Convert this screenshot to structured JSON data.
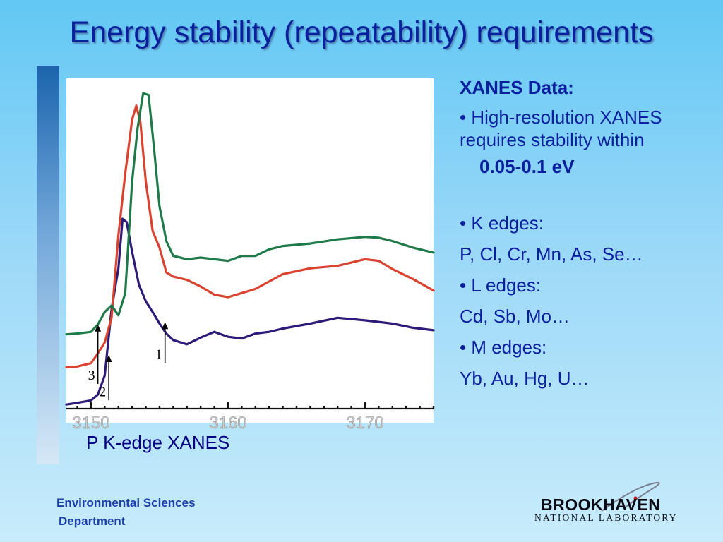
{
  "slide": {
    "title": "Energy stability (repeatability) requirements",
    "caption": "P K-edge XANES"
  },
  "info": {
    "heading": "XANES Data:",
    "bullet1": "• High-resolution XANES requires stability within",
    "bullet1_value": "0.05-0.1 eV",
    "bullet2": "• K edges:",
    "bullet2_items": "P, Cl, Cr, Mn, As, Se…",
    "bullet3": "• L edges:",
    "bullet3_items": "Cd, Sb, Mo…",
    "bullet4": "• M edges:",
    "bullet4_items": "Yb, Au, Hg, U…"
  },
  "footer": {
    "dept_line1": "Environmental Sciences",
    "dept_line2": "Department",
    "logo_name": "BROOKHAVEN",
    "logo_subtitle": "NATIONAL LABORATORY"
  },
  "chart_data": {
    "type": "line",
    "xlim": [
      3148.2,
      3175
    ],
    "ylim": [
      -0.05,
      3.9
    ],
    "x_ticks": [
      3150,
      3160,
      3170
    ],
    "x_tick_labels": [
      "3150",
      "3160",
      "3170"
    ],
    "series": [
      {
        "color": "#2e1a78",
        "points": [
          [
            3148.2,
            0
          ],
          [
            3149,
            0.02
          ],
          [
            3150,
            0.05
          ],
          [
            3150.5,
            0.12
          ],
          [
            3151,
            0.35
          ],
          [
            3151.5,
            1.15
          ],
          [
            3152,
            1.65
          ],
          [
            3152.3,
            2.25
          ],
          [
            3152.6,
            2.21
          ],
          [
            3153,
            1.85
          ],
          [
            3153.5,
            1.45
          ],
          [
            3154,
            1.25
          ],
          [
            3154.5,
            1.12
          ],
          [
            3155,
            0.98
          ],
          [
            3155.5,
            0.86
          ],
          [
            3156,
            0.78
          ],
          [
            3157,
            0.73
          ],
          [
            3158,
            0.81
          ],
          [
            3159,
            0.88
          ],
          [
            3160,
            0.82
          ],
          [
            3161,
            0.8
          ],
          [
            3162,
            0.86
          ],
          [
            3163,
            0.88
          ],
          [
            3164,
            0.92
          ],
          [
            3166,
            0.98
          ],
          [
            3168,
            1.05
          ],
          [
            3170,
            1.02
          ],
          [
            3172,
            0.98
          ],
          [
            3173.5,
            0.93
          ],
          [
            3175,
            0.9
          ]
        ]
      },
      {
        "color": "#d9432f",
        "points": [
          [
            3148.2,
            0.45
          ],
          [
            3149,
            0.46
          ],
          [
            3150,
            0.5
          ],
          [
            3150.5,
            0.62
          ],
          [
            3151,
            0.75
          ],
          [
            3151.5,
            1.05
          ],
          [
            3152,
            2.05
          ],
          [
            3152.5,
            2.8
          ],
          [
            3153,
            3.45
          ],
          [
            3153.3,
            3.62
          ],
          [
            3153.6,
            3.42
          ],
          [
            3154,
            2.7
          ],
          [
            3154.5,
            2.1
          ],
          [
            3155,
            1.9
          ],
          [
            3155.5,
            1.6
          ],
          [
            3156,
            1.55
          ],
          [
            3157,
            1.51
          ],
          [
            3158,
            1.43
          ],
          [
            3159,
            1.33
          ],
          [
            3160,
            1.3
          ],
          [
            3161,
            1.35
          ],
          [
            3162,
            1.4
          ],
          [
            3163,
            1.49
          ],
          [
            3164,
            1.58
          ],
          [
            3166,
            1.65
          ],
          [
            3168,
            1.68
          ],
          [
            3170,
            1.76
          ],
          [
            3171,
            1.74
          ],
          [
            3172,
            1.64
          ],
          [
            3173.5,
            1.52
          ],
          [
            3175,
            1.38
          ]
        ]
      },
      {
        "color": "#1f7a4a",
        "points": [
          [
            3148.2,
            0.85
          ],
          [
            3149,
            0.86
          ],
          [
            3150,
            0.88
          ],
          [
            3150.5,
            0.97
          ],
          [
            3151,
            1.12
          ],
          [
            3151.5,
            1.2
          ],
          [
            3152,
            1.08
          ],
          [
            3152.5,
            1.35
          ],
          [
            3153,
            2.7
          ],
          [
            3153.4,
            3.35
          ],
          [
            3153.8,
            3.77
          ],
          [
            3154.2,
            3.75
          ],
          [
            3154.6,
            3.1
          ],
          [
            3155,
            2.4
          ],
          [
            3155.5,
            1.98
          ],
          [
            3156,
            1.8
          ],
          [
            3157,
            1.76
          ],
          [
            3158,
            1.78
          ],
          [
            3159,
            1.76
          ],
          [
            3160,
            1.74
          ],
          [
            3161,
            1.8
          ],
          [
            3162,
            1.8
          ],
          [
            3163,
            1.88
          ],
          [
            3164,
            1.92
          ],
          [
            3166,
            1.95
          ],
          [
            3168,
            2.0
          ],
          [
            3170,
            2.03
          ],
          [
            3171,
            2.02
          ],
          [
            3172,
            1.98
          ],
          [
            3173.5,
            1.9
          ],
          [
            3175,
            1.84
          ]
        ]
      }
    ],
    "annotations": [
      {
        "label": "1",
        "x": 3155.4,
        "y_from": 0.5,
        "y_to": 1.0
      },
      {
        "label": "2",
        "x": 3151.3,
        "y_from": 0.05,
        "y_to": 0.6
      },
      {
        "label": "3",
        "x": 3150.5,
        "y_from": 0.25,
        "y_to": 0.97
      }
    ]
  }
}
